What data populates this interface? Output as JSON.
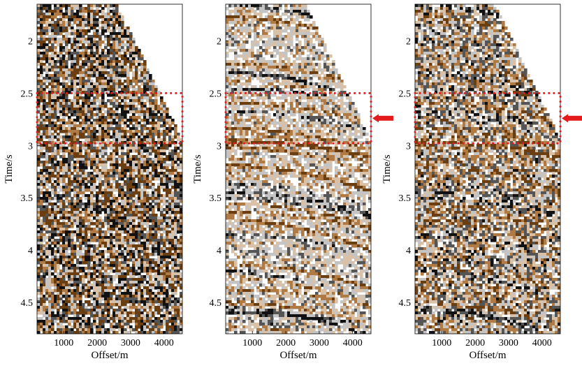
{
  "chart_data": [
    {
      "type": "heatmap",
      "subtype": "seismic-gather",
      "panel": "left",
      "xlabel": "Offset/m",
      "ylabel": "Time/s",
      "xlim": [
        200,
        4550
      ],
      "ylim": [
        1.65,
        4.8
      ],
      "xticks": [
        1000,
        2000,
        3000,
        4000
      ],
      "yticks": [
        2,
        2.5,
        3,
        3.5,
        4,
        4.5
      ],
      "xtick_labels": [
        "1000",
        "2000",
        "3000",
        "4000"
      ],
      "ytick_labels": [
        "2",
        "2.5",
        "3",
        "3.5",
        "4",
        "4.5"
      ],
      "highlight_box": {
        "t_start": 2.5,
        "t_end": 2.98,
        "style": "red dotted"
      },
      "arrow": false,
      "noise_level": "high"
    },
    {
      "type": "heatmap",
      "subtype": "seismic-gather",
      "panel": "middle",
      "xlabel": "Offset/m",
      "ylabel": "Time/s",
      "xlim": [
        200,
        4550
      ],
      "ylim": [
        1.65,
        4.8
      ],
      "xticks": [
        1000,
        2000,
        3000,
        4000
      ],
      "yticks": [
        2,
        2.5,
        3,
        3.5,
        4,
        4.5
      ],
      "xtick_labels": [
        "1000",
        "2000",
        "3000",
        "4000"
      ],
      "ytick_labels": [
        "2",
        "2.5",
        "3",
        "3.5",
        "4",
        "4.5"
      ],
      "highlight_box": {
        "t_start": 2.5,
        "t_end": 2.98,
        "style": "red dotted"
      },
      "arrow": true,
      "arrow_time": 2.74,
      "noise_level": "low"
    },
    {
      "type": "heatmap",
      "subtype": "seismic-gather",
      "panel": "right",
      "xlabel": "Offset/m",
      "ylabel": "Time/s",
      "xlim": [
        200,
        4550
      ],
      "ylim": [
        1.65,
        4.8
      ],
      "xticks": [
        1000,
        2000,
        3000,
        4000
      ],
      "yticks": [
        2,
        2.5,
        3,
        3.5,
        4,
        4.5
      ],
      "xtick_labels": [
        "1000",
        "2000",
        "3000",
        "4000"
      ],
      "ytick_labels": [
        "2",
        "2.5",
        "3",
        "3.5",
        "4",
        "4.5"
      ],
      "highlight_box": {
        "t_start": 2.5,
        "t_end": 2.98,
        "style": "red dotted"
      },
      "arrow": true,
      "arrow_time": 2.74,
      "noise_level": "medium"
    }
  ],
  "colors": {
    "positive": "#6b3e12",
    "mid_positive": "#b07a45",
    "negative": "#111111",
    "background": "#ffffff",
    "highlight": "#e41a1c"
  },
  "mute": {
    "description": "top-right triangular mute",
    "offset_start": 2600,
    "offset_end": 4550,
    "time_at_start": 1.65,
    "time_at_end": 2.95
  }
}
